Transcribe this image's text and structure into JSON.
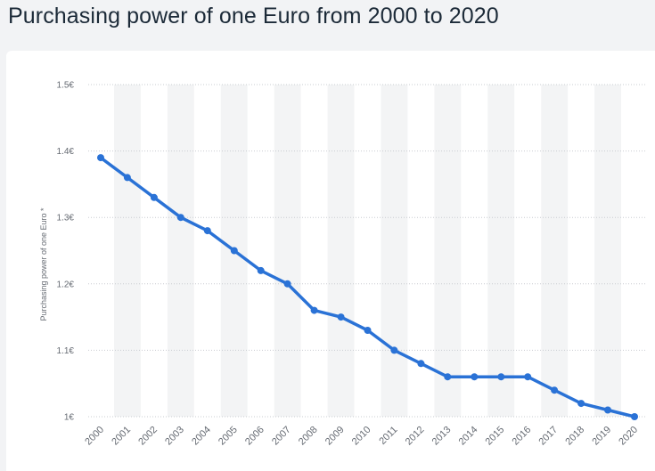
{
  "title": "Purchasing power of one Euro from 2000 to 2020",
  "colors": {
    "series": "#2a72d6",
    "band": "#f3f4f5",
    "grid": "#c9ccd1",
    "text": "#666b73",
    "title": "#1c2a38"
  },
  "chart_data": {
    "type": "line",
    "title": "",
    "xlabel": "",
    "ylabel": "Purchasing power of one Euro *",
    "categories": [
      "2000",
      "2001",
      "2002",
      "2003",
      "2004",
      "2005",
      "2006",
      "2007",
      "2008",
      "2009",
      "2010",
      "2011",
      "2012",
      "2013",
      "2014",
      "2015",
      "2016",
      "2017",
      "2018",
      "2019",
      "2020"
    ],
    "series": [
      {
        "values": [
          1.39,
          1.36,
          1.33,
          1.3,
          1.28,
          1.25,
          1.22,
          1.2,
          1.16,
          1.15,
          1.13,
          1.1,
          1.08,
          1.06,
          1.06,
          1.06,
          1.06,
          1.04,
          1.02,
          1.01,
          1.0
        ]
      }
    ],
    "ylim": [
      1.0,
      1.5
    ],
    "yticks": [
      1.0,
      1.1,
      1.2,
      1.3,
      1.4,
      1.5
    ],
    "ytick_labels": [
      "1€",
      "1.1€",
      "1.2€",
      "1.3€",
      "1.4€",
      "1.5€"
    ],
    "grid": true,
    "alternating_column_bands": true,
    "legend": "none"
  }
}
